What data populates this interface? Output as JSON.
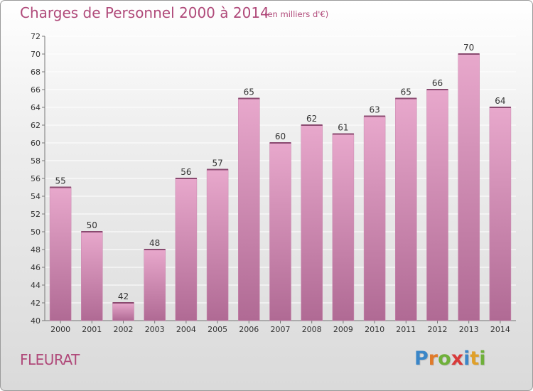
{
  "title": "Charges de Personnel 2000 à 2014",
  "subtitle": "(en milliers d'€)",
  "commune": "FLEURAT",
  "logo": {
    "letters": [
      "P",
      "r",
      "o",
      "x",
      "i",
      "t",
      "i"
    ],
    "colors": [
      "#3a86c8",
      "#e07a2a",
      "#6fb03a",
      "#d83a3a",
      "#3a86c8",
      "#e0a02a",
      "#6fb03a"
    ]
  },
  "colors": {
    "title": "#b04a7a",
    "bar_top": "#e8a8cc",
    "bar_bottom": "#b06a94",
    "bar_side": "#c98aaf",
    "axis": "#777777",
    "grid": "#ffffff"
  },
  "chart_data": {
    "type": "bar",
    "categories": [
      "2000",
      "2001",
      "2002",
      "2003",
      "2004",
      "2005",
      "2006",
      "2007",
      "2008",
      "2009",
      "2010",
      "2011",
      "2012",
      "2013",
      "2014"
    ],
    "values": [
      55,
      50,
      42,
      48,
      56,
      57,
      65,
      60,
      62,
      61,
      63,
      65,
      66,
      70,
      64
    ],
    "ylim": [
      40,
      72
    ],
    "yticks": [
      40,
      42,
      44,
      46,
      48,
      50,
      52,
      54,
      56,
      58,
      60,
      62,
      64,
      66,
      68,
      70,
      72
    ],
    "grid": true,
    "data_labels": true,
    "xlabel": "",
    "ylabel": ""
  }
}
